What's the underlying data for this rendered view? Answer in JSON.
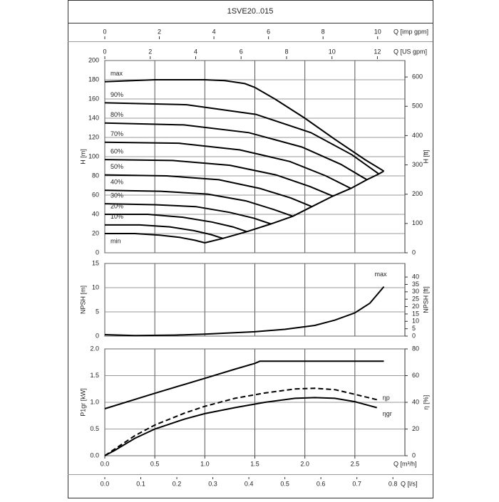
{
  "chart_data": [
    {
      "type": "line",
      "title": "1SVE20..015",
      "top_axes": [
        {
          "label": "Q [imp gpm]",
          "lim": [
            0,
            11.0
          ],
          "ticks": [
            0,
            2,
            4,
            6,
            8,
            10
          ]
        },
        {
          "label": "Q [US gpm]",
          "lim": [
            0,
            13.21
          ],
          "ticks": [
            0,
            2,
            4,
            6,
            8,
            10,
            12
          ]
        }
      ],
      "xlim": [
        0,
        3.0
      ],
      "ylabel": "H [m]",
      "ylim": [
        0,
        200
      ],
      "yticks": [
        0,
        20,
        40,
        60,
        80,
        100,
        120,
        140,
        160,
        180,
        200
      ],
      "y2label": "H [ft]",
      "y2lim": [
        0,
        656.2
      ],
      "y2ticks": [
        0,
        100,
        200,
        300,
        400,
        500,
        600
      ],
      "grid": true,
      "series": [
        {
          "name": "max",
          "color": "#000000",
          "x": [
            0,
            0.5,
            1.0,
            1.2,
            1.4,
            1.5,
            1.7,
            2.0,
            2.3,
            2.6,
            2.79
          ],
          "values": [
            178,
            180,
            180,
            179,
            176,
            172,
            160,
            140,
            118,
            97,
            85
          ]
        },
        {
          "name": "90%",
          "color": "#000000",
          "x": [
            0,
            0.82,
            1.51,
            2.06,
            2.47,
            2.74
          ],
          "values": [
            156,
            154,
            144,
            125,
            102,
            82
          ]
        },
        {
          "name": "80%",
          "color": "#000000",
          "x": [
            0,
            0.79,
            1.44,
            1.97,
            2.36,
            2.62
          ],
          "values": [
            135,
            133,
            125,
            110,
            92,
            76
          ]
        },
        {
          "name": "70%",
          "color": "#000000",
          "x": [
            0,
            0.74,
            1.35,
            1.85,
            2.21,
            2.46
          ],
          "values": [
            115,
            114,
            107,
            95,
            80,
            67
          ]
        },
        {
          "name": "60%",
          "color": "#000000",
          "x": [
            0,
            0.68,
            1.25,
            1.71,
            2.05,
            2.28
          ],
          "values": [
            97,
            96,
            91,
            81,
            69,
            59
          ]
        },
        {
          "name": "50%",
          "color": "#000000",
          "x": [
            0,
            0.62,
            1.14,
            1.55,
            1.86,
            2.07
          ],
          "values": [
            81,
            80,
            76,
            67,
            57,
            48
          ]
        },
        {
          "name": "40%",
          "color": "#000000",
          "x": [
            0,
            0.56,
            1.03,
            1.41,
            1.69,
            1.88
          ],
          "values": [
            65,
            64,
            61,
            54,
            45,
            38
          ]
        },
        {
          "name": "30%",
          "color": "#000000",
          "x": [
            0,
            0.5,
            0.91,
            1.25,
            1.49,
            1.66
          ],
          "values": [
            51,
            50,
            48,
            42,
            36,
            30
          ]
        },
        {
          "name": "20%",
          "color": "#000000",
          "x": [
            0,
            0.43,
            0.78,
            1.07,
            1.28,
            1.42
          ],
          "values": [
            40,
            40,
            37,
            32,
            27,
            22
          ]
        },
        {
          "name": "10%",
          "color": "#000000",
          "x": [
            0,
            0.35,
            0.65,
            0.89,
            1.06,
            1.18
          ],
          "values": [
            29,
            29,
            27,
            23,
            19,
            15
          ]
        },
        {
          "name": "min",
          "color": "#000000",
          "x": [
            0,
            0.3,
            0.55,
            0.75,
            0.9,
            1.0
          ],
          "values": [
            20,
            20,
            18.4,
            16,
            13,
            10.4
          ]
        },
        {
          "color": "#000000",
          "x": [
            1.0,
            1.18,
            1.42,
            1.66,
            1.88,
            2.07,
            2.28,
            2.46,
            2.62,
            2.74,
            2.79
          ],
          "values": [
            10.4,
            15,
            22,
            30,
            38,
            48,
            59,
            67,
            76,
            82,
            85
          ]
        }
      ]
    },
    {
      "type": "line",
      "xlim": [
        0,
        3.0
      ],
      "ylabel": "NPSH [m]",
      "ylim": [
        0,
        15
      ],
      "yticks": [
        0,
        5,
        10,
        15
      ],
      "y2label": "NPSH [ft]",
      "y2lim": [
        0,
        49.21
      ],
      "y2ticks": [
        0,
        5,
        10,
        15,
        20,
        25,
        30,
        35,
        40
      ],
      "grid": true,
      "series": [
        {
          "name": "max",
          "color": "#000000",
          "x": [
            0,
            0.3,
            0.7,
            1.0,
            1.5,
            1.8,
            2.1,
            2.3,
            2.5,
            2.65,
            2.79
          ],
          "values": [
            0.3,
            0.1,
            0.2,
            0.4,
            0.9,
            1.4,
            2.2,
            3.3,
            4.8,
            6.8,
            10.2
          ]
        }
      ]
    },
    {
      "type": "line",
      "xlabel": "Q [m³/h]",
      "xlim": [
        0,
        3.0
      ],
      "xticks": [
        {
          "value": 0,
          "label": "0.0"
        },
        0.5,
        {
          "value": 1,
          "label": "1.0"
        },
        1.5,
        {
          "value": 2,
          "label": "2.0"
        },
        2.5
      ],
      "x2label": "Q [l/s]",
      "x2lim": [
        0,
        0.8333
      ],
      "x2ticks": [
        {
          "value": 0,
          "label": "0.0"
        },
        0.1,
        0.2,
        0.3,
        0.4,
        0.5,
        0.6,
        0.7,
        0.8
      ],
      "ylabel": "P1gr [kW]",
      "ylim": [
        0,
        2.0
      ],
      "yticks": [
        {
          "value": 0,
          "label": "0.0"
        },
        0.5,
        {
          "value": 1,
          "label": "1.0"
        },
        1.5,
        {
          "value": 2,
          "label": "2.0"
        }
      ],
      "y2label": "η [%]",
      "y2lim": [
        0,
        80
      ],
      "y2ticks": [
        0,
        20,
        40,
        60,
        80
      ],
      "grid": true,
      "series": [
        {
          "color": "#000000",
          "x": [
            0,
            0.5,
            1.0,
            1.3,
            1.5,
            1.55,
            2.79
          ],
          "values": [
            0.88,
            1.17,
            1.45,
            1.62,
            1.73,
            1.77,
            1.77
          ]
        },
        {
          "name": "ηp",
          "color": "#000000",
          "axis": "y2",
          "dashed": true,
          "x": [
            0,
            0.1,
            0.3,
            0.5,
            0.8,
            1.0,
            1.3,
            1.6,
            1.9,
            2.1,
            2.3,
            2.5,
            2.72
          ],
          "values": [
            0,
            5,
            15,
            23,
            32,
            37,
            43,
            47,
            50,
            50.5,
            49.5,
            46,
            42
          ]
        },
        {
          "name": "ηgr",
          "color": "#000000",
          "axis": "y2",
          "x": [
            0,
            0.1,
            0.3,
            0.5,
            0.8,
            1.0,
            1.3,
            1.6,
            1.9,
            2.1,
            2.3,
            2.5,
            2.72
          ],
          "values": [
            0,
            4,
            13,
            20,
            27.5,
            31.5,
            36,
            40,
            43,
            43.5,
            43,
            40.5,
            36
          ]
        }
      ]
    }
  ]
}
